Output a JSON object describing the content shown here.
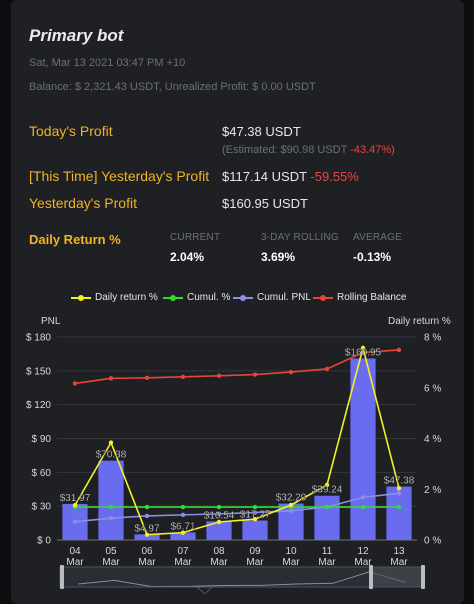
{
  "bot": {
    "title": "Primary bot",
    "timestamp": "Sat, Mar 13 2021 03:47 PM +10",
    "balance_text": "Balance: $ 2,321.43 USDT, Unrealized Profit: $ 0.00 USDT"
  },
  "profits": {
    "today_label": "Today's Profit",
    "today_value": "$47.38 USDT",
    "estimated_text": "(Estimated: $90.98 USDT",
    "estimated_pct": "-43.47%)",
    "this_time_label": "[This Time] Yesterday's Profit",
    "this_time_value": "$117.14 USDT",
    "this_time_pct": "-59.55%",
    "yesterday_label": "Yesterday's Profit",
    "yesterday_value": "$160.95 USDT"
  },
  "daily_return": {
    "label": "Daily Return %",
    "current_label": "CURRENT",
    "current_value": "2.04%",
    "rolling_label": "3-DAY ROLLING",
    "rolling_value": "3.69%",
    "average_label": "AVERAGE",
    "average_value": "-0.13%"
  },
  "colors": {
    "accent": "#f0b323",
    "negative": "#e74646",
    "bar": "#6a6cf0",
    "daily_line": "#f5f026",
    "cumul_line": "#2fdf2f",
    "cumul_pnl_line": "#8c8fe8",
    "rolling_line": "#e8443c"
  },
  "chart_data": {
    "type": "bar",
    "categories": [
      "04 Mar",
      "05 Mar",
      "06 Mar",
      "07 Mar",
      "08 Mar",
      "09 Mar",
      "10 Mar",
      "11 Mar",
      "12 Mar",
      "13 Mar"
    ],
    "ylabel_left": "PNL",
    "ylabel_right": "Daily return %",
    "left_ticks": [
      "$ 0",
      "$ 30",
      "$ 60",
      "$ 90",
      "$ 120",
      "$ 150",
      "$ 180"
    ],
    "right_ticks": [
      "0 %",
      "2 %",
      "4 %",
      "6 %",
      "8 %"
    ],
    "ylim_left": [
      0,
      180
    ],
    "ylim_right": [
      0,
      8
    ],
    "legend_position": "top",
    "series": [
      {
        "name": "Daily return %",
        "type": "line",
        "axis": "right",
        "values": [
          1.37,
          3.84,
          0.21,
          0.29,
          0.71,
          0.82,
          1.38,
          2.17,
          7.57,
          2.04
        ]
      },
      {
        "name": "Cumul. %",
        "type": "line",
        "axis": "right",
        "values": [
          1.3,
          1.3,
          1.3,
          1.3,
          1.3,
          1.3,
          1.3,
          1.3,
          1.3,
          1.3
        ]
      },
      {
        "name": "Cumul. PNL",
        "type": "line",
        "axis": "right",
        "values": [
          0.72,
          0.86,
          0.95,
          0.99,
          1.03,
          1.08,
          1.15,
          1.3,
          1.68,
          1.84
        ]
      },
      {
        "name": "Rolling Balance",
        "type": "line",
        "axis": "right",
        "values": [
          6.17,
          6.37,
          6.39,
          6.43,
          6.47,
          6.52,
          6.62,
          6.74,
          7.39,
          7.49
        ]
      }
    ],
    "bars": {
      "axis": "left",
      "values": [
        31.97,
        70.38,
        4.97,
        6.71,
        16.54,
        17.27,
        32.29,
        39.24,
        160.95,
        47.38
      ],
      "labels": [
        "$31.97",
        "$70.38",
        "$4.97",
        "$6.71",
        "$16.54",
        "$17.27",
        "$32.29",
        "$39.24",
        "$160.95",
        "$47.38"
      ]
    }
  }
}
